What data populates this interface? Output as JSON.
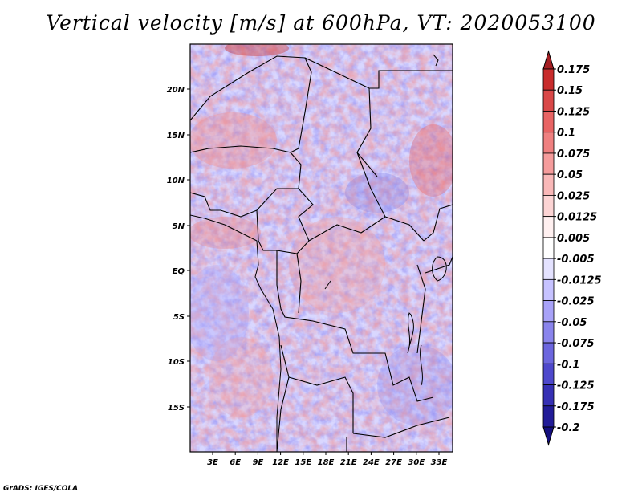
{
  "title": "Vertical velocity [m/s] at 600hPa, VT: 2020053100",
  "credit": "GrADS: IGES/COLA",
  "map": {
    "lat_ticks": [
      "20N",
      "15N",
      "10N",
      "5N",
      "EQ",
      "5S",
      "10S",
      "15S"
    ],
    "lon_ticks": [
      "3E",
      "6E",
      "9E",
      "12E",
      "15E",
      "18E",
      "21E",
      "24E",
      "27E",
      "30E",
      "33E"
    ]
  },
  "colorbar": {
    "labels": [
      "0.175",
      "0.15",
      "0.125",
      "0.1",
      "0.075",
      "0.05",
      "0.025",
      "0.0125",
      "0.005",
      "-0.005",
      "-0.0125",
      "-0.025",
      "-0.05",
      "-0.075",
      "-0.1",
      "-0.125",
      "-0.175",
      "-0.2"
    ],
    "colors": [
      "#a51e22",
      "#c82c2c",
      "#d94848",
      "#e86464",
      "#ef8080",
      "#f59c9c",
      "#f9b8b8",
      "#fcd4d4",
      "#fff0f0",
      "#ffffff",
      "#e4e2ff",
      "#c6c2ff",
      "#a8a2f8",
      "#8a84ec",
      "#6c66de",
      "#4e48cc",
      "#3630b4",
      "#221c98",
      "#150f80"
    ]
  }
}
